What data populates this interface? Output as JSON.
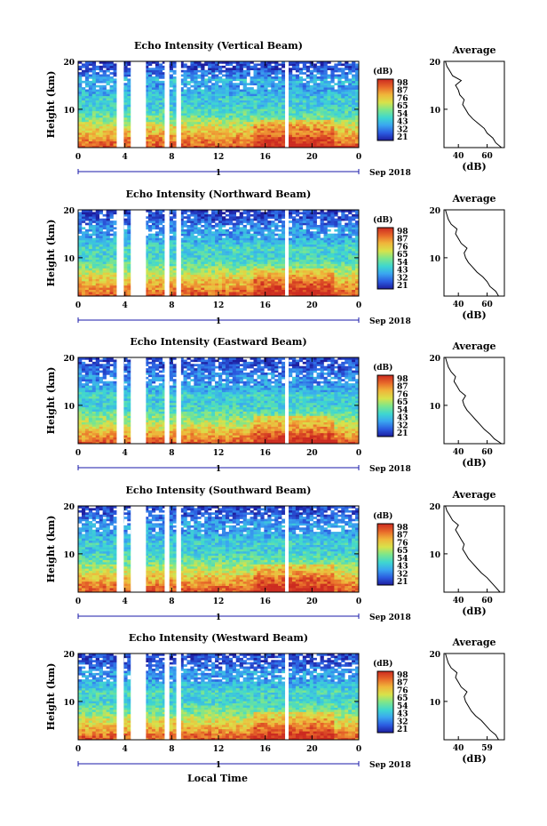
{
  "figure": {
    "date_label": "Sep 2018",
    "time_axis_label": "Local Time",
    "day_label": "1",
    "colorbar_unit": "(dB)",
    "colorbar_ticks": [
      "98",
      "87",
      "76",
      "65",
      "54",
      "43",
      "32",
      "21"
    ],
    "colors": {
      "colormap": [
        "#1d1d9e",
        "#2b5be0",
        "#3aa7f0",
        "#3ed7d0",
        "#7ee68a",
        "#d8e24a",
        "#f0b43a",
        "#e86a2a",
        "#cc2a20"
      ],
      "axis": "#000000",
      "marker": "#1a1aa8"
    }
  },
  "chart_data": [
    {
      "type": "heatmap",
      "title": "Echo Intensity (Vertical Beam)",
      "xlabel": "",
      "ylabel": "Height (km)",
      "xlim": [
        0,
        24
      ],
      "ylim": [
        2,
        20
      ],
      "x_ticks": [
        "0",
        "4",
        "8",
        "12",
        "16",
        "20",
        "0"
      ],
      "y_ticks": [
        "20",
        "10"
      ],
      "data_gaps_local_time": [
        [
          3.3,
          3.9
        ],
        [
          4.5,
          5.8
        ],
        [
          7.4,
          7.8
        ],
        [
          8.4,
          8.8
        ],
        [
          17.7,
          18.0
        ]
      ],
      "colorbar": {
        "unit": "(dB)",
        "range": [
          21,
          98
        ]
      },
      "profile": {
        "title": "Average",
        "xlabel": "(dB)",
        "x_ticks": [
          "40",
          "60"
        ],
        "xlim": [
          30,
          72
        ],
        "ylim": [
          2,
          20
        ],
        "height_km": [
          2,
          3,
          4,
          5,
          6,
          7,
          8,
          9,
          10,
          11,
          12,
          13,
          14,
          15,
          16,
          17,
          18,
          19,
          20
        ],
        "values_db": [
          70,
          66,
          64,
          60,
          58,
          54,
          50,
          47,
          45,
          43,
          44,
          41,
          40,
          38,
          42,
          36,
          34,
          32,
          31
        ]
      }
    },
    {
      "type": "heatmap",
      "title": "Echo Intensity (Northward Beam)",
      "xlabel": "",
      "ylabel": "Height (km)",
      "xlim": [
        0,
        24
      ],
      "ylim": [
        2,
        20
      ],
      "x_ticks": [
        "0",
        "4",
        "8",
        "12",
        "16",
        "20",
        "0"
      ],
      "y_ticks": [
        "20",
        "10"
      ],
      "data_gaps_local_time": [
        [
          3.3,
          3.9
        ],
        [
          4.5,
          5.8
        ],
        [
          7.4,
          7.8
        ],
        [
          8.4,
          8.8
        ],
        [
          17.7,
          18.0
        ]
      ],
      "colorbar": {
        "unit": "(dB)",
        "range": [
          21,
          98
        ]
      },
      "profile": {
        "title": "Average",
        "xlabel": "(dB)",
        "x_ticks": [
          "40",
          "60"
        ],
        "xlim": [
          30,
          72
        ],
        "ylim": [
          2,
          20
        ],
        "height_km": [
          2,
          3,
          4,
          5,
          6,
          7,
          8,
          9,
          10,
          11,
          12,
          13,
          14,
          15,
          16,
          17,
          18,
          19,
          20
        ],
        "values_db": [
          68,
          66,
          62,
          60,
          57,
          53,
          50,
          47,
          45,
          44,
          46,
          42,
          40,
          38,
          39,
          35,
          33,
          32,
          31
        ]
      }
    },
    {
      "type": "heatmap",
      "title": "Echo Intensity (Eastward Beam)",
      "xlabel": "",
      "ylabel": "Height (km)",
      "xlim": [
        0,
        24
      ],
      "ylim": [
        2,
        20
      ],
      "x_ticks": [
        "0",
        "4",
        "8",
        "12",
        "16",
        "20",
        "0"
      ],
      "y_ticks": [
        "20",
        "10"
      ],
      "data_gaps_local_time": [
        [
          3.3,
          3.9
        ],
        [
          4.5,
          5.8
        ],
        [
          7.4,
          7.8
        ],
        [
          8.4,
          8.8
        ],
        [
          17.7,
          18.0
        ]
      ],
      "colorbar": {
        "unit": "(dB)",
        "range": [
          21,
          98
        ]
      },
      "profile": {
        "title": "Average",
        "xlabel": "(dB)",
        "x_ticks": [
          "40",
          "60"
        ],
        "xlim": [
          30,
          72
        ],
        "ylim": [
          2,
          20
        ],
        "height_km": [
          2,
          3,
          4,
          5,
          6,
          7,
          8,
          9,
          10,
          11,
          12,
          13,
          14,
          15,
          16,
          17,
          18,
          19,
          20
        ],
        "values_db": [
          70,
          65,
          62,
          58,
          55,
          52,
          49,
          46,
          44,
          43,
          45,
          41,
          39,
          37,
          38,
          35,
          33,
          32,
          31
        ]
      }
    },
    {
      "type": "heatmap",
      "title": "Echo Intensity (Southward Beam)",
      "xlabel": "",
      "ylabel": "Height (km)",
      "xlim": [
        0,
        24
      ],
      "ylim": [
        2,
        20
      ],
      "x_ticks": [
        "0",
        "4",
        "8",
        "12",
        "16",
        "20",
        "0"
      ],
      "y_ticks": [
        "20",
        "10"
      ],
      "data_gaps_local_time": [
        [
          3.3,
          3.9
        ],
        [
          4.5,
          5.8
        ],
        [
          7.4,
          7.8
        ],
        [
          8.4,
          8.8
        ],
        [
          17.7,
          18.0
        ]
      ],
      "colorbar": {
        "unit": "(dB)",
        "range": [
          21,
          98
        ]
      },
      "profile": {
        "title": "Average",
        "xlabel": "(dB)",
        "x_ticks": [
          "40",
          "60"
        ],
        "xlim": [
          30,
          72
        ],
        "ylim": [
          2,
          20
        ],
        "height_km": [
          2,
          3,
          4,
          5,
          6,
          7,
          8,
          9,
          10,
          11,
          12,
          13,
          14,
          15,
          16,
          17,
          18,
          19,
          20
        ],
        "values_db": [
          69,
          66,
          63,
          60,
          56,
          53,
          50,
          47,
          45,
          43,
          44,
          42,
          40,
          38,
          40,
          36,
          34,
          32,
          31
        ]
      }
    },
    {
      "type": "heatmap",
      "title": "Echo Intensity (Westward Beam)",
      "xlabel": "Local Time",
      "ylabel": "Height (km)",
      "xlim": [
        0,
        24
      ],
      "ylim": [
        2,
        20
      ],
      "x_ticks": [
        "0",
        "4",
        "8",
        "12",
        "16",
        "20",
        "0"
      ],
      "y_ticks": [
        "20",
        "10"
      ],
      "data_gaps_local_time": [
        [
          3.3,
          3.9
        ],
        [
          4.5,
          5.8
        ],
        [
          7.4,
          7.8
        ],
        [
          8.4,
          8.8
        ],
        [
          17.7,
          18.0
        ]
      ],
      "colorbar": {
        "unit": "(dB)",
        "range": [
          21,
          98
        ]
      },
      "profile": {
        "title": "Average",
        "xlabel": "(dB)",
        "x_ticks": [
          "40",
          "59"
        ],
        "xlim": [
          30,
          72
        ],
        "ylim": [
          2,
          20
        ],
        "height_km": [
          2,
          3,
          4,
          5,
          6,
          7,
          8,
          9,
          10,
          11,
          12,
          13,
          14,
          15,
          16,
          17,
          18,
          19,
          20
        ],
        "values_db": [
          68,
          66,
          62,
          59,
          56,
          52,
          49,
          47,
          45,
          44,
          46,
          42,
          40,
          38,
          39,
          35,
          33,
          32,
          31
        ]
      }
    }
  ]
}
